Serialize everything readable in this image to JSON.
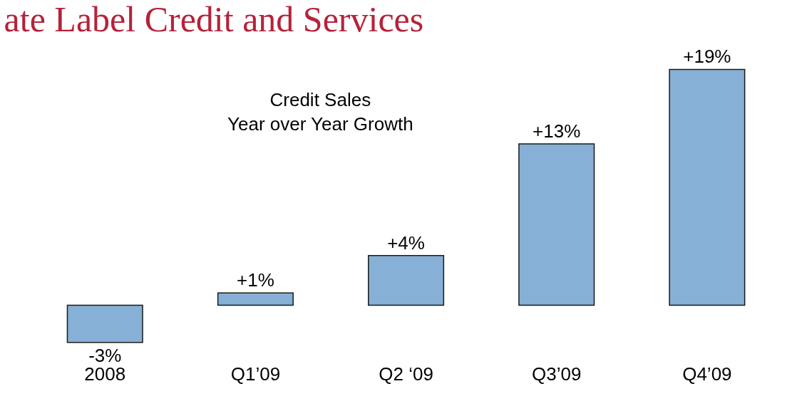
{
  "chart_data": {
    "type": "bar",
    "title": "ate Label Credit and Services",
    "subtitle": "Credit Sales\nYear over Year Growth",
    "categories": [
      "2008",
      "Q1’09",
      "Q2 ‘09",
      "Q3’09",
      "Q4’09"
    ],
    "values": [
      -3,
      1,
      4,
      13,
      19
    ],
    "color": "#86b0d6",
    "value_labels": [
      "-3%",
      "+1%",
      "+4%",
      "+13%",
      "+19%"
    ],
    "grid": false,
    "legend": false
  }
}
